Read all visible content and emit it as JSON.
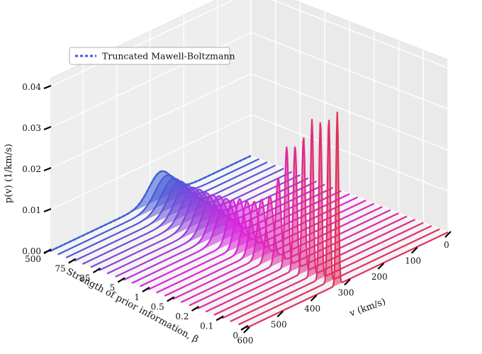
{
  "chart_data": {
    "type": "3d-waterfall-line",
    "title": "",
    "legend": {
      "entries": [
        {
          "label": "Truncated Mawell-Boltzmann",
          "color": "#3a5fd8",
          "style": "dashed"
        }
      ],
      "placement": "top-left"
    },
    "x_axis": {
      "label": "v (km/s)",
      "range": [
        0,
        600
      ],
      "ticks": [
        "0",
        "100",
        "200",
        "300",
        "400",
        "500",
        "600"
      ]
    },
    "y_axis": {
      "label": "Strength of prior information, β",
      "categories": [
        "0",
        "0.1",
        "0.2",
        "0.5",
        "1",
        "5",
        "25",
        "75",
        "500"
      ]
    },
    "z_axis": {
      "label": "p(v) (1/km/s)",
      "range": [
        0,
        0.04
      ],
      "ticks": [
        "0.00",
        "0.01",
        "0.02",
        "0.03",
        "0.04"
      ]
    },
    "grid": true,
    "colors": {
      "low_beta": "#e0305a",
      "mid_beta": "#dd22dd",
      "high_beta": "#3a5fd8"
    },
    "series": [
      {
        "beta": 0,
        "mode": 330,
        "peak": 0.042
      },
      {
        "beta": 0.1,
        "mode": 332,
        "peak": 0.038
      },
      {
        "beta": 0.2,
        "mode": 334,
        "peak": 0.029
      },
      {
        "beta": 0.5,
        "mode": 336,
        "peak": 0.014
      },
      {
        "beta": 1,
        "mode": 328,
        "peak": 0.0115
      },
      {
        "beta": 5,
        "mode": 318,
        "peak": 0.0095
      },
      {
        "beta": 25,
        "mode": 305,
        "peak": 0.0082
      },
      {
        "beta": 75,
        "mode": 290,
        "peak": 0.0073
      },
      {
        "beta": 500,
        "mode": 270,
        "peak": 0.0066
      }
    ]
  }
}
